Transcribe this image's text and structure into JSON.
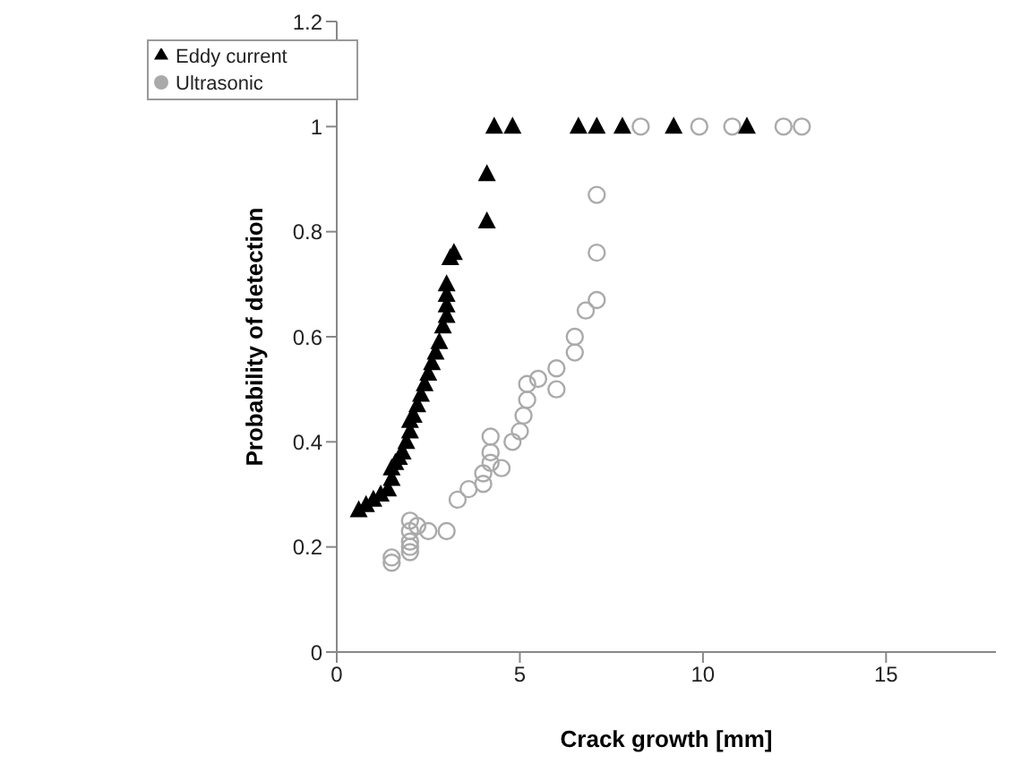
{
  "chart_data": {
    "type": "scatter",
    "xlabel": "Crack growth [mm]",
    "ylabel": "Probability of detection",
    "xlim": [
      0,
      18
    ],
    "xticks": [
      0,
      5,
      10,
      15
    ],
    "ylim": [
      0,
      1.2
    ],
    "yticks": [
      0,
      0.2,
      0.4,
      0.6,
      0.8,
      1,
      1.2
    ],
    "grid": false,
    "legend": "top left",
    "series": [
      {
        "name": "Ultrasonic",
        "color": "#aaaaaa",
        "marker": "circle",
        "x": [
          1.5,
          1.5,
          2.0,
          2.0,
          2.0,
          2.0,
          2.0,
          2.2,
          2.5,
          3.0,
          3.3,
          3.6,
          4.0,
          4.0,
          4.2,
          4.2,
          4.2,
          4.5,
          4.8,
          5.0,
          5.1,
          5.2,
          5.2,
          5.5,
          6.0,
          6.0,
          6.5,
          6.5,
          6.8,
          7.1,
          7.1,
          7.1,
          8.3,
          9.9,
          10.8,
          12.2,
          12.7
        ],
        "values": [
          0.17,
          0.18,
          0.19,
          0.2,
          0.21,
          0.23,
          0.25,
          0.24,
          0.23,
          0.23,
          0.29,
          0.31,
          0.32,
          0.34,
          0.36,
          0.38,
          0.41,
          0.35,
          0.4,
          0.42,
          0.45,
          0.48,
          0.51,
          0.52,
          0.5,
          0.54,
          0.57,
          0.6,
          0.65,
          0.67,
          0.76,
          0.87,
          1,
          1,
          1,
          1,
          1
        ]
      },
      {
        "name": "Eddy current",
        "color": "#000000",
        "marker": "triangle",
        "x": [
          0.6,
          0.8,
          1.0,
          1.2,
          1.4,
          1.5,
          1.5,
          1.6,
          1.7,
          1.8,
          1.9,
          2.0,
          2.0,
          2.1,
          2.2,
          2.3,
          2.4,
          2.5,
          2.6,
          2.7,
          2.8,
          2.9,
          3.0,
          3.0,
          3.0,
          3.0,
          3.1,
          3.2,
          4.1,
          4.1,
          4.3,
          4.8,
          6.6,
          7.1,
          7.8,
          9.2,
          11.2
        ],
        "values": [
          0.27,
          0.28,
          0.29,
          0.3,
          0.31,
          0.33,
          0.35,
          0.36,
          0.37,
          0.38,
          0.4,
          0.42,
          0.44,
          0.45,
          0.47,
          0.49,
          0.51,
          0.53,
          0.55,
          0.57,
          0.59,
          0.62,
          0.64,
          0.66,
          0.68,
          0.7,
          0.75,
          0.76,
          0.82,
          0.91,
          1,
          1,
          1,
          1,
          1,
          1,
          1
        ]
      }
    ]
  }
}
